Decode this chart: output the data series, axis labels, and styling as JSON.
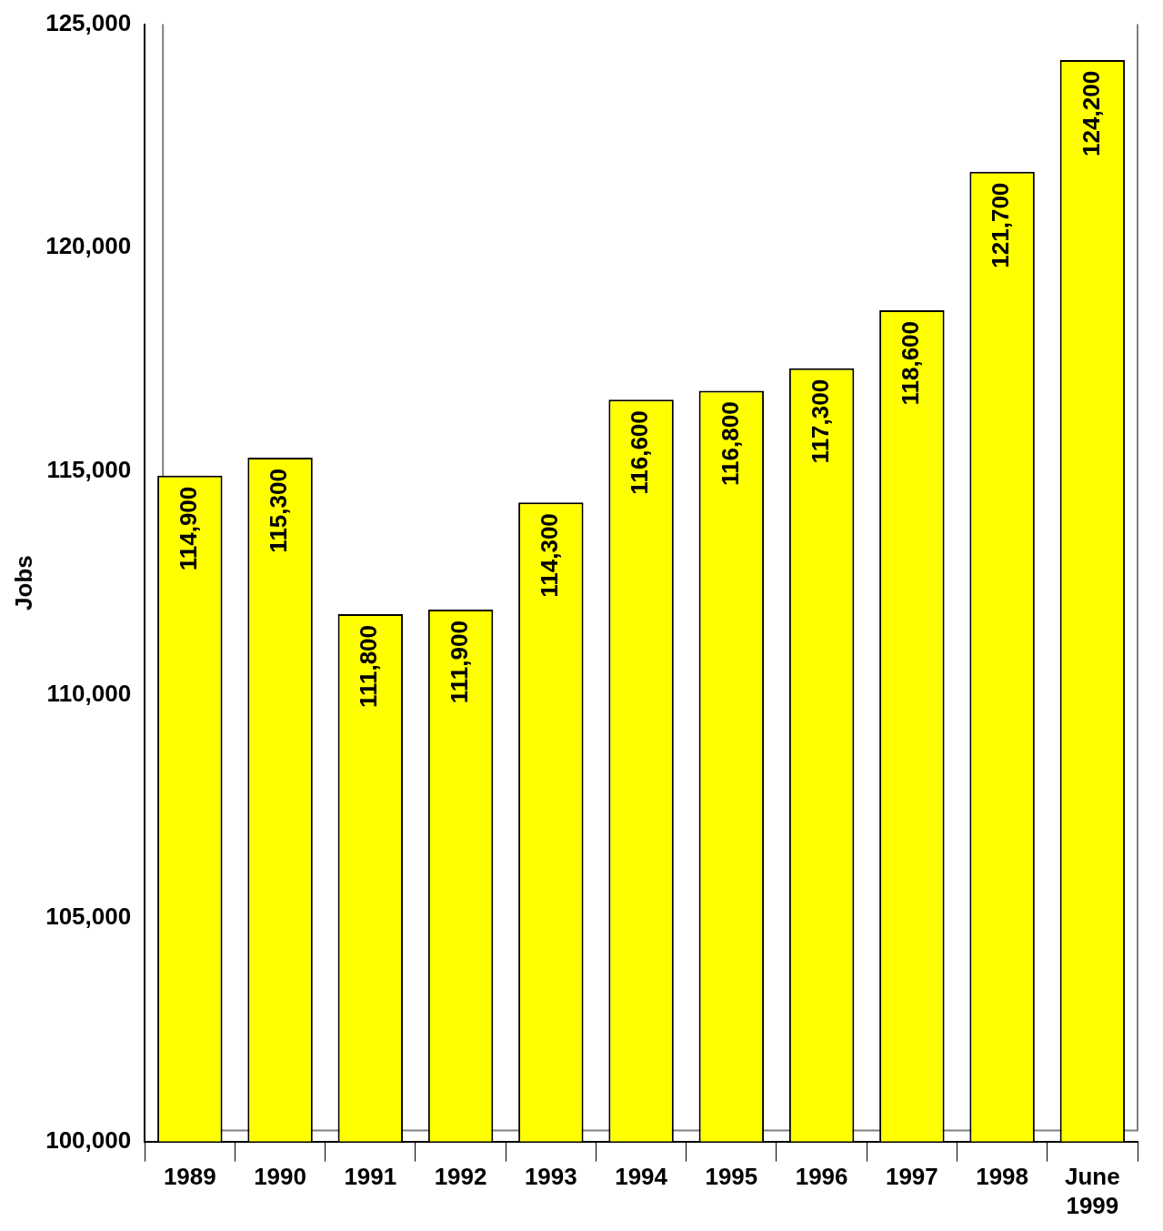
{
  "chart_data": {
    "type": "bar",
    "ylabel": "Jobs",
    "categories": [
      "1989",
      "1990",
      "1991",
      "1992",
      "1993",
      "1994",
      "1995",
      "1996",
      "1997",
      "1998",
      "June 1999"
    ],
    "values": [
      114900,
      115300,
      111800,
      111900,
      114300,
      116600,
      116800,
      117300,
      118600,
      121700,
      124200
    ],
    "value_labels": [
      "114,900",
      "115,300",
      "111,800",
      "111,900",
      "114,300",
      "116,600",
      "116,800",
      "117,300",
      "118,600",
      "121,700",
      "124,200"
    ],
    "color": "#ffff00",
    "ylim": [
      100000,
      125000
    ],
    "yticks": [
      {
        "value": 100000,
        "label": "100,000"
      },
      {
        "value": 105000,
        "label": "105,000"
      },
      {
        "value": 110000,
        "label": "110,000"
      },
      {
        "value": 115000,
        "label": "115,000"
      },
      {
        "value": 120000,
        "label": "120,000"
      },
      {
        "value": 125000,
        "label": "125,000"
      }
    ],
    "grid": false,
    "legend": false
  }
}
